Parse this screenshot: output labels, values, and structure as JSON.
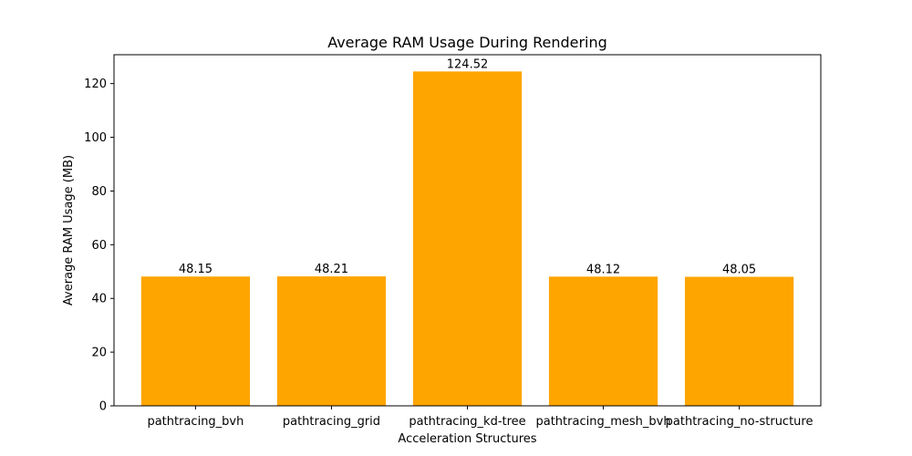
{
  "chart_data": {
    "type": "bar",
    "title": "Average RAM Usage During Rendering",
    "xlabel": "Acceleration Structures",
    "ylabel": "Average RAM Usage (MB)",
    "categories": [
      "pathtracing_bvh",
      "pathtracing_grid",
      "pathtracing_kd-tree",
      "pathtracing_mesh_bvh",
      "pathtracing_no-structure"
    ],
    "values": [
      48.15,
      48.21,
      124.52,
      48.12,
      48.05
    ],
    "data_labels": [
      "48.15",
      "48.21",
      "124.52",
      "48.12",
      "48.05"
    ],
    "ylim": [
      0,
      130.75
    ],
    "yticks": [
      0,
      20,
      40,
      60,
      80,
      100,
      120
    ],
    "bar_color": "#ffa500",
    "grid": false,
    "legend": "none"
  }
}
